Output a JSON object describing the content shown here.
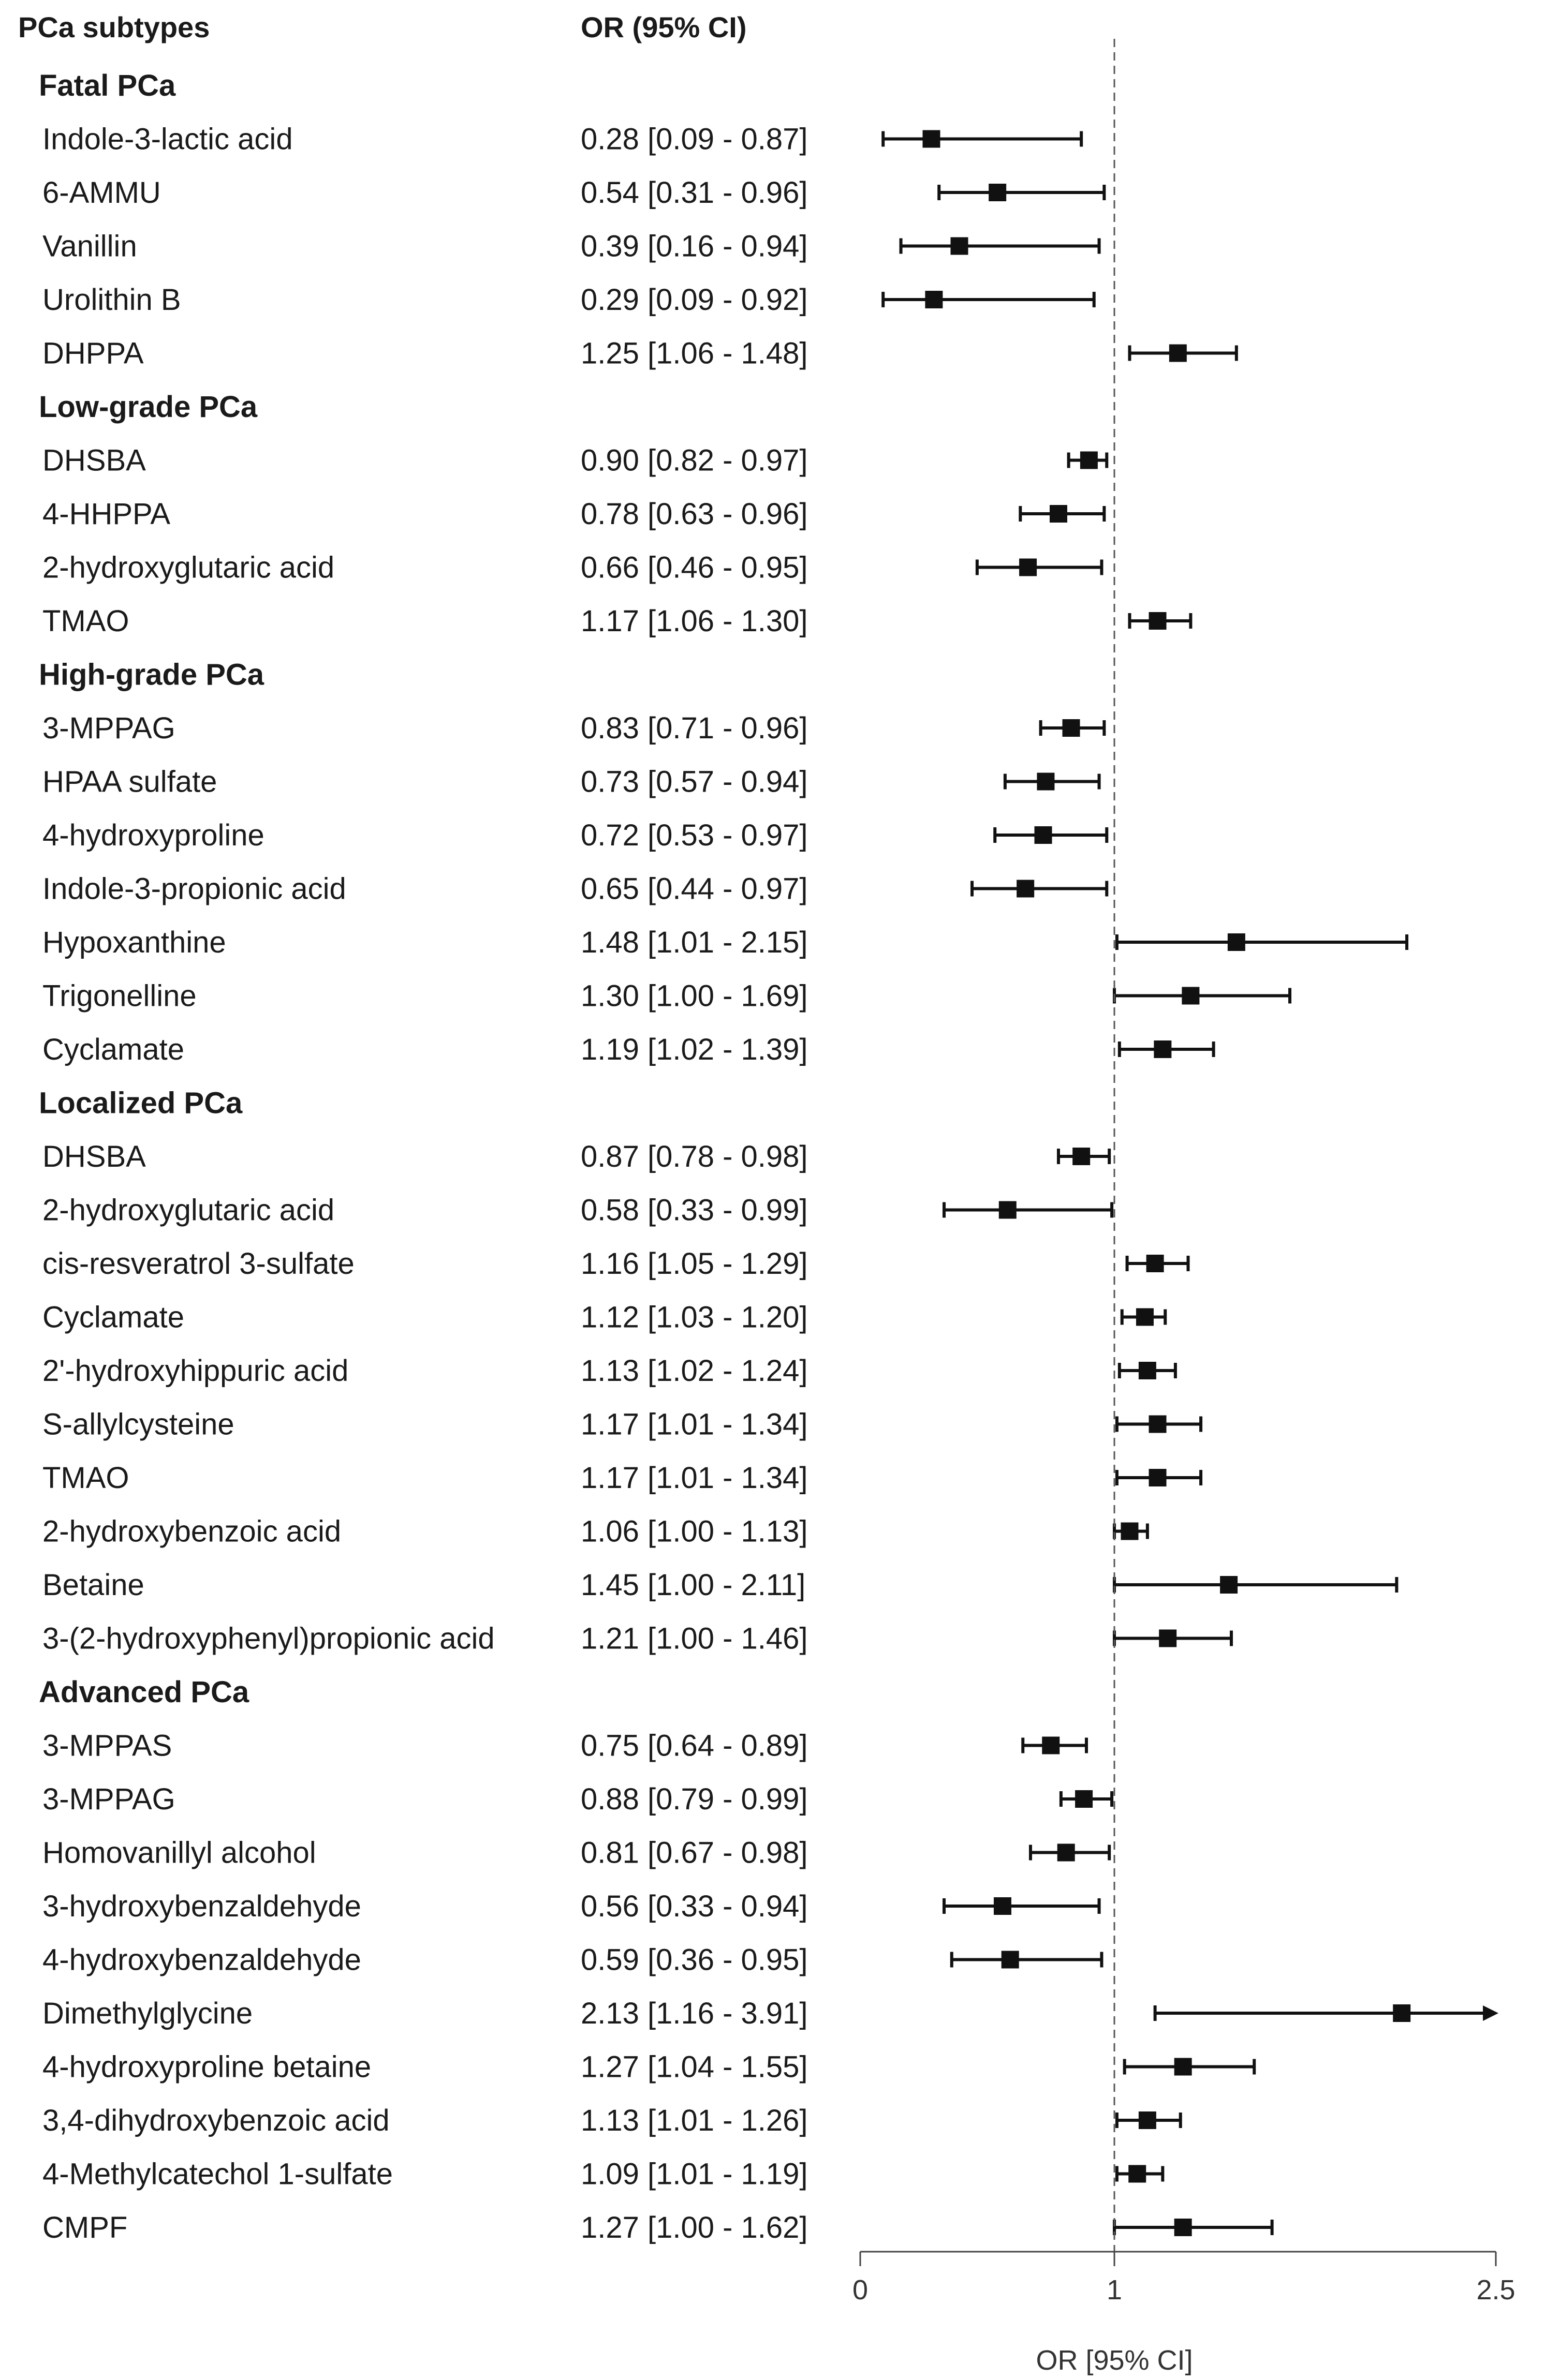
{
  "chart_data": {
    "type": "forest",
    "headers": {
      "subtypes": "PCa subtypes",
      "or_ci": "OR (95% CI)"
    },
    "xlabel": "OR [95% CI]",
    "xlim": [
      0,
      2.5
    ],
    "ticks": [
      {
        "value": 0,
        "label": "0"
      },
      {
        "value": 1,
        "label": "1"
      },
      {
        "value": 2.5,
        "label": "2.5"
      }
    ],
    "reference_value": 1,
    "groups": [
      {
        "title": "Fatal PCa",
        "rows": [
          {
            "name": "Indole-3-lactic acid",
            "text": "0.28 [0.09 - 0.87]",
            "or": 0.28,
            "lo": 0.09,
            "hi": 0.87
          },
          {
            "name": "6-AMMU",
            "text": "0.54 [0.31 - 0.96]",
            "or": 0.54,
            "lo": 0.31,
            "hi": 0.96
          },
          {
            "name": "Vanillin",
            "text": "0.39 [0.16 - 0.94]",
            "or": 0.39,
            "lo": 0.16,
            "hi": 0.94
          },
          {
            "name": "Urolithin B",
            "text": "0.29 [0.09 - 0.92]",
            "or": 0.29,
            "lo": 0.09,
            "hi": 0.92
          },
          {
            "name": "DHPPA",
            "text": "1.25 [1.06 - 1.48]",
            "or": 1.25,
            "lo": 1.06,
            "hi": 1.48
          }
        ]
      },
      {
        "title": "Low-grade PCa",
        "rows": [
          {
            "name": "DHSBA",
            "text": "0.90 [0.82 - 0.97]",
            "or": 0.9,
            "lo": 0.82,
            "hi": 0.97
          },
          {
            "name": "4-HHPPA",
            "text": "0.78 [0.63 - 0.96]",
            "or": 0.78,
            "lo": 0.63,
            "hi": 0.96
          },
          {
            "name": "2-hydroxyglutaric acid",
            "text": "0.66 [0.46 - 0.95]",
            "or": 0.66,
            "lo": 0.46,
            "hi": 0.95
          },
          {
            "name": "TMAO",
            "text": "1.17 [1.06 - 1.30]",
            "or": 1.17,
            "lo": 1.06,
            "hi": 1.3
          }
        ]
      },
      {
        "title": "High-grade PCa",
        "rows": [
          {
            "name": "3-MPPAG",
            "text": "0.83 [0.71 - 0.96]",
            "or": 0.83,
            "lo": 0.71,
            "hi": 0.96
          },
          {
            "name": "HPAA sulfate",
            "text": "0.73 [0.57 - 0.94]",
            "or": 0.73,
            "lo": 0.57,
            "hi": 0.94
          },
          {
            "name": "4-hydroxyproline",
            "text": "0.72 [0.53 - 0.97]",
            "or": 0.72,
            "lo": 0.53,
            "hi": 0.97
          },
          {
            "name": "Indole-3-propionic acid",
            "text": "0.65 [0.44 - 0.97]",
            "or": 0.65,
            "lo": 0.44,
            "hi": 0.97
          },
          {
            "name": "Hypoxanthine",
            "text": "1.48 [1.01 - 2.15]",
            "or": 1.48,
            "lo": 1.01,
            "hi": 2.15
          },
          {
            "name": "Trigonelline",
            "text": "1.30 [1.00 - 1.69]",
            "or": 1.3,
            "lo": 1.0,
            "hi": 1.69
          },
          {
            "name": "Cyclamate",
            "text": "1.19 [1.02 - 1.39]",
            "or": 1.19,
            "lo": 1.02,
            "hi": 1.39
          }
        ]
      },
      {
        "title": "Localized PCa",
        "rows": [
          {
            "name": "DHSBA",
            "text": "0.87 [0.78 - 0.98]",
            "or": 0.87,
            "lo": 0.78,
            "hi": 0.98
          },
          {
            "name": "2-hydroxyglutaric acid",
            "text": "0.58 [0.33 - 0.99]",
            "or": 0.58,
            "lo": 0.33,
            "hi": 0.99
          },
          {
            "name": "cis-resveratrol 3-sulfate",
            "text": "1.16 [1.05 - 1.29]",
            "or": 1.16,
            "lo": 1.05,
            "hi": 1.29
          },
          {
            "name": "Cyclamate",
            "text": "1.12 [1.03 - 1.20]",
            "or": 1.12,
            "lo": 1.03,
            "hi": 1.2
          },
          {
            "name": "2'-hydroxyhippuric acid",
            "text": "1.13 [1.02 - 1.24]",
            "or": 1.13,
            "lo": 1.02,
            "hi": 1.24
          },
          {
            "name": "S-allylcysteine",
            "text": "1.17 [1.01 - 1.34]",
            "or": 1.17,
            "lo": 1.01,
            "hi": 1.34
          },
          {
            "name": "TMAO",
            "text": "1.17 [1.01 - 1.34]",
            "or": 1.17,
            "lo": 1.01,
            "hi": 1.34
          },
          {
            "name": "2-hydroxybenzoic acid",
            "text": "1.06 [1.00 - 1.13]",
            "or": 1.06,
            "lo": 1.0,
            "hi": 1.13
          },
          {
            "name": "Betaine",
            "text": "1.45 [1.00 - 2.11]",
            "or": 1.45,
            "lo": 1.0,
            "hi": 2.11
          },
          {
            "name": "3-(2-hydroxyphenyl)propionic acid",
            "text": "1.21 [1.00 - 1.46]",
            "or": 1.21,
            "lo": 1.0,
            "hi": 1.46
          }
        ]
      },
      {
        "title": "Advanced PCa",
        "rows": [
          {
            "name": "3-MPPAS",
            "text": "0.75 [0.64 - 0.89]",
            "or": 0.75,
            "lo": 0.64,
            "hi": 0.89
          },
          {
            "name": "3-MPPAG",
            "text": "0.88 [0.79 - 0.99]",
            "or": 0.88,
            "lo": 0.79,
            "hi": 0.99
          },
          {
            "name": "Homovanillyl alcohol",
            "text": "0.81 [0.67 - 0.98]",
            "or": 0.81,
            "lo": 0.67,
            "hi": 0.98
          },
          {
            "name": "3-hydroxybenzaldehyde",
            "text": "0.56 [0.33 - 0.94]",
            "or": 0.56,
            "lo": 0.33,
            "hi": 0.94
          },
          {
            "name": "4-hydroxybenzaldehyde",
            "text": "0.59 [0.36 - 0.95]",
            "or": 0.59,
            "lo": 0.36,
            "hi": 0.95
          },
          {
            "name": "Dimethylglycine",
            "text": "2.13 [1.16 - 3.91]",
            "or": 2.13,
            "lo": 1.16,
            "hi": 3.91
          },
          {
            "name": "4-hydroxyproline betaine",
            "text": "1.27 [1.04 - 1.55]",
            "or": 1.27,
            "lo": 1.04,
            "hi": 1.55
          },
          {
            "name": "3,4-dihydroxybenzoic acid",
            "text": "1.13 [1.01 - 1.26]",
            "or": 1.13,
            "lo": 1.01,
            "hi": 1.26
          },
          {
            "name": "4-Methylcatechol 1-sulfate",
            "text": "1.09 [1.01 - 1.19]",
            "or": 1.09,
            "lo": 1.01,
            "hi": 1.19
          },
          {
            "name": "CMPF",
            "text": "1.27 [1.00 - 1.62]",
            "or": 1.27,
            "lo": 1.0,
            "hi": 1.62
          }
        ]
      }
    ]
  }
}
